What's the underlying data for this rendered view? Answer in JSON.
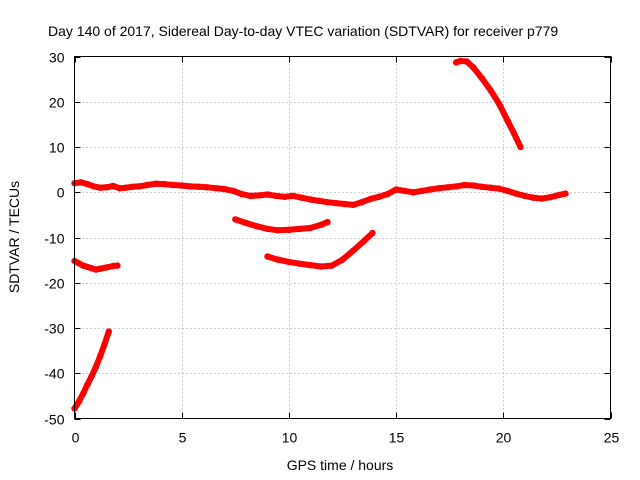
{
  "chart_data": {
    "type": "line",
    "title": "Day 140 of 2017, Sidereal Day-to-day VTEC variation (SDTVAR) for receiver p779",
    "xlabel": "GPS time / hours",
    "ylabel": "SDTVAR / TECUs",
    "xlim": [
      0,
      25
    ],
    "ylim": [
      -50,
      30
    ],
    "xticks": [
      0,
      5,
      10,
      15,
      20,
      25
    ],
    "yticks": [
      -50,
      -40,
      -30,
      -20,
      -10,
      0,
      10,
      20,
      30
    ],
    "xtick_labels": [
      "0",
      "5",
      "10",
      "15",
      "20",
      "25"
    ],
    "ytick_labels": [
      "-50",
      "-40",
      "-30",
      "-20",
      "-10",
      "0",
      "10",
      "20",
      "30"
    ],
    "grid": true,
    "legend": "none",
    "color": "#ff0000",
    "series": [
      {
        "name": "arc-1",
        "x": [
          0.0,
          0.3,
          0.6,
          0.9,
          1.2,
          1.5,
          1.8,
          2.1,
          2.4,
          2.7,
          3.0,
          3.4,
          3.8,
          4.2,
          4.6,
          5.0,
          5.4,
          5.8,
          6.2,
          6.6,
          7.0,
          7.4,
          7.8,
          8.2,
          8.6,
          9.0,
          9.4,
          9.8,
          10.2,
          10.6,
          11.0,
          11.4,
          11.8,
          12.2,
          12.6,
          13.0,
          13.4,
          13.8,
          14.2,
          14.6,
          15.0,
          15.4,
          15.8,
          16.2,
          16.6,
          17.0,
          17.4,
          17.8,
          18.2,
          18.6,
          19.0,
          19.4,
          19.8,
          20.2,
          20.6,
          21.0,
          21.4,
          21.8,
          22.2,
          22.6,
          22.9
        ],
        "y": [
          2.0,
          2.2,
          1.8,
          1.3,
          1.0,
          1.1,
          1.4,
          0.9,
          1.0,
          1.2,
          1.3,
          1.6,
          1.9,
          1.8,
          1.6,
          1.5,
          1.3,
          1.2,
          1.1,
          0.9,
          0.7,
          0.3,
          -0.4,
          -0.8,
          -0.7,
          -0.5,
          -0.8,
          -1.0,
          -0.8,
          -1.2,
          -1.6,
          -1.9,
          -2.2,
          -2.4,
          -2.6,
          -2.8,
          -2.2,
          -1.5,
          -1.0,
          -0.4,
          0.6,
          0.3,
          0.0,
          0.3,
          0.6,
          0.9,
          1.1,
          1.3,
          1.6,
          1.5,
          1.2,
          1.0,
          0.8,
          0.3,
          -0.3,
          -0.8,
          -1.2,
          -1.4,
          -1.1,
          -0.6,
          -0.3
        ]
      },
      {
        "name": "arc-2",
        "x": [
          0.0,
          0.2,
          0.4,
          0.6,
          0.8,
          1.0,
          1.2,
          1.5,
          1.8,
          2.0
        ],
        "y": [
          -15.2,
          -15.7,
          -16.2,
          -16.5,
          -16.8,
          -17.1,
          -16.9,
          -16.6,
          -16.3,
          -16.2
        ]
      },
      {
        "name": "arc-3",
        "x": [
          0.0,
          0.2,
          0.4,
          0.6,
          0.8,
          1.0,
          1.2,
          1.4,
          1.6
        ],
        "y": [
          -47.8,
          -46.3,
          -44.5,
          -42.5,
          -40.6,
          -38.6,
          -36.2,
          -33.6,
          -30.8
        ]
      },
      {
        "name": "arc-4",
        "x": [
          7.5,
          8.0,
          8.5,
          9.0,
          9.5,
          10.0,
          10.5,
          11.0,
          11.5,
          11.8
        ],
        "y": [
          -6.0,
          -6.8,
          -7.5,
          -8.1,
          -8.4,
          -8.3,
          -8.1,
          -7.9,
          -7.2,
          -6.6
        ]
      },
      {
        "name": "arc-5",
        "x": [
          9.0,
          9.5,
          10.0,
          10.5,
          11.0,
          11.5,
          12.0,
          12.5,
          13.0,
          13.5,
          13.9
        ],
        "y": [
          -14.2,
          -14.9,
          -15.4,
          -15.8,
          -16.1,
          -16.4,
          -16.2,
          -14.9,
          -12.9,
          -10.8,
          -9.0
        ]
      },
      {
        "name": "arc-6",
        "x": [
          17.8,
          18.0,
          18.3,
          18.6,
          19.0,
          19.4,
          19.8,
          20.2,
          20.5,
          20.8
        ],
        "y": [
          28.7,
          29.0,
          28.9,
          27.6,
          25.2,
          22.6,
          19.6,
          15.8,
          13.0,
          10.0
        ]
      }
    ]
  }
}
